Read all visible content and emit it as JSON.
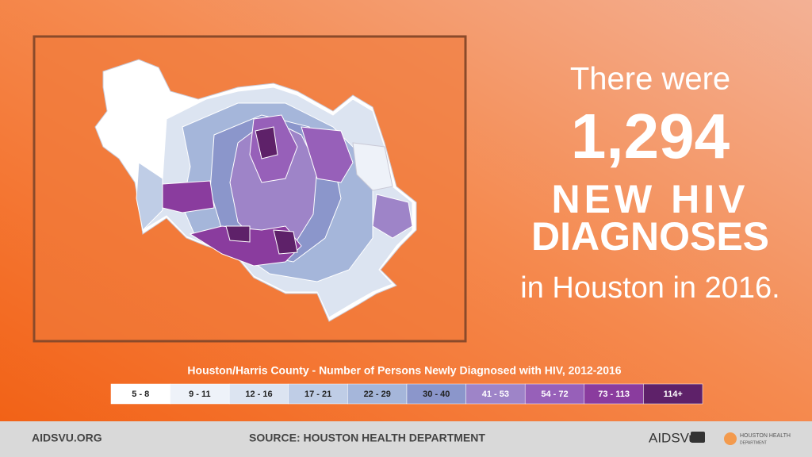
{
  "headline": {
    "intro": "There were",
    "count": "1,294",
    "line1": "NEW HIV",
    "line2": "DIAGNOSES",
    "outro": "in Houston in 2016."
  },
  "legend": {
    "title": "Houston/Harris County - Number of Persons Newly Diagnosed with HIV, 2012-2016",
    "bins": [
      {
        "label": "5 - 8",
        "color": "#ffffff"
      },
      {
        "label": "9 - 11",
        "color": "#eef2f9"
      },
      {
        "label": "12 - 16",
        "color": "#dce4f1"
      },
      {
        "label": "17 - 21",
        "color": "#bfcde6"
      },
      {
        "label": "22 - 29",
        "color": "#a5b6da"
      },
      {
        "label": "30 - 40",
        "color": "#8b96cb"
      },
      {
        "label": "41 - 53",
        "color": "#9e84c8"
      },
      {
        "label": "54 - 72",
        "color": "#9760b9"
      },
      {
        "label": "73 - 113",
        "color": "#8a3c9e"
      },
      {
        "label": "114+",
        "color": "#5e2169"
      }
    ]
  },
  "footer": {
    "site": "AIDSVU.ORG",
    "source": "SOURCE: HOUSTON HEALTH DEPARTMENT",
    "logo": "AIDSVu",
    "partner_line1": "HOUSTON HEALTH",
    "partner_line2": "DEPARTMENT"
  }
}
